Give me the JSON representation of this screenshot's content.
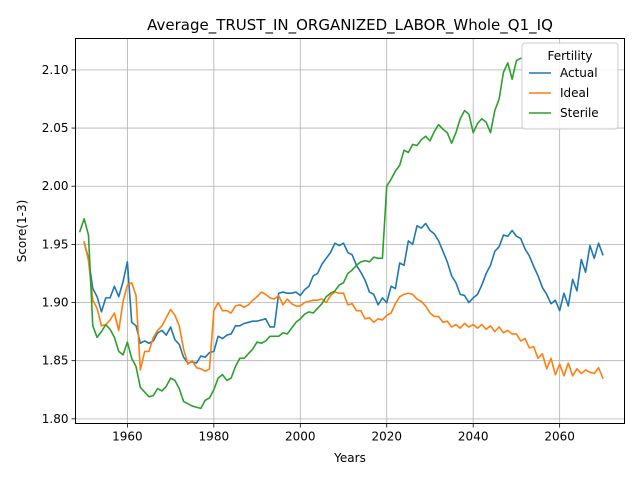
{
  "chart_data": {
    "type": "line",
    "title": "Average_TRUST_IN_ORGANIZED_LABOR_Whole_Q1_IQ",
    "xlabel": "Years",
    "ylabel": "Score(1-3)",
    "xlim": [
      1948,
      2075
    ],
    "ylim": [
      1.796,
      2.127
    ],
    "xticks": [
      1960,
      1980,
      2000,
      2020,
      2040,
      2060
    ],
    "yticks": [
      1.8,
      1.85,
      1.9,
      1.95,
      2.0,
      2.05,
      2.1
    ],
    "xtick_labels": [
      "1960",
      "1980",
      "2000",
      "2020",
      "2040",
      "2060"
    ],
    "ytick_labels": [
      "1.80",
      "1.85",
      "1.90",
      "1.95",
      "2.00",
      "2.05",
      "2.10"
    ],
    "grid": true,
    "legend": {
      "title": "Fertility",
      "position": "top-right"
    },
    "series": [
      {
        "name": "Actual",
        "color": "#1f77b4",
        "x": [
          1950,
          1951,
          1952,
          1953,
          1954,
          1955,
          1956,
          1957,
          1958,
          1959,
          1960,
          1961,
          1962,
          1963,
          1964,
          1965,
          1966,
          1967,
          1968,
          1969,
          1970,
          1971,
          1972,
          1973,
          1974,
          1975,
          1976,
          1977,
          1978,
          1979,
          1980,
          1981,
          1982,
          1983,
          1984,
          1985,
          1986,
          1987,
          1988,
          1989,
          1990,
          1991,
          1992,
          1993,
          1994,
          1995,
          1996,
          1997,
          1998,
          1999,
          2000,
          2001,
          2002,
          2003,
          2004,
          2005,
          2006,
          2007,
          2008,
          2009,
          2010,
          2011,
          2012,
          2013,
          2014,
          2015,
          2016,
          2017,
          2018,
          2019,
          2020,
          2021,
          2022,
          2023,
          2024,
          2025,
          2026,
          2027,
          2028,
          2029,
          2030,
          2031,
          2032,
          2033,
          2034,
          2035,
          2036,
          2037,
          2038,
          2039,
          2040,
          2041,
          2042,
          2043,
          2044,
          2045,
          2046,
          2047,
          2048,
          2049,
          2050,
          2051,
          2052,
          2053,
          2054,
          2055,
          2056,
          2057,
          2058,
          2059,
          2060,
          2061,
          2062,
          2063,
          2064,
          2065,
          2066,
          2067,
          2068,
          2069,
          2070
        ],
        "values": [
          1.952,
          1.938,
          1.912,
          1.905,
          1.892,
          1.904,
          1.904,
          1.914,
          1.905,
          1.918,
          1.935,
          1.883,
          1.88,
          1.865,
          1.867,
          1.865,
          1.867,
          1.874,
          1.876,
          1.872,
          1.879,
          1.868,
          1.864,
          1.853,
          1.848,
          1.849,
          1.848,
          1.854,
          1.853,
          1.857,
          1.858,
          1.871,
          1.869,
          1.872,
          1.873,
          1.88,
          1.88,
          1.882,
          1.883,
          1.884,
          1.884,
          1.885,
          1.886,
          1.879,
          1.879,
          1.908,
          1.909,
          1.908,
          1.908,
          1.909,
          1.906,
          1.911,
          1.914,
          1.923,
          1.925,
          1.933,
          1.938,
          1.943,
          1.951,
          1.949,
          1.951,
          1.943,
          1.941,
          1.932,
          1.926,
          1.919,
          1.909,
          1.907,
          1.898,
          1.904,
          1.9,
          1.914,
          1.912,
          1.934,
          1.932,
          1.953,
          1.95,
          1.966,
          1.964,
          1.968,
          1.962,
          1.959,
          1.953,
          1.944,
          1.935,
          1.923,
          1.917,
          1.907,
          1.906,
          1.9,
          1.904,
          1.907,
          1.915,
          1.925,
          1.932,
          1.944,
          1.948,
          1.958,
          1.957,
          1.962,
          1.957,
          1.955,
          1.946,
          1.94,
          1.931,
          1.923,
          1.913,
          1.907,
          1.899,
          1.902,
          1.893,
          1.908,
          1.897,
          1.92,
          1.91,
          1.937,
          1.926,
          1.949,
          1.938,
          1.951,
          1.941
        ]
      },
      {
        "name": "Ideal",
        "color": "#ff7f0e",
        "x": [
          1950,
          1951,
          1952,
          1953,
          1954,
          1955,
          1956,
          1957,
          1958,
          1959,
          1960,
          1961,
          1962,
          1963,
          1964,
          1965,
          1966,
          1967,
          1968,
          1969,
          1970,
          1971,
          1972,
          1973,
          1974,
          1975,
          1976,
          1977,
          1978,
          1979,
          1980,
          1981,
          1982,
          1983,
          1984,
          1985,
          1986,
          1987,
          1988,
          1989,
          1990,
          1991,
          1992,
          1993,
          1994,
          1995,
          1996,
          1997,
          1998,
          1999,
          2000,
          2001,
          2002,
          2003,
          2004,
          2005,
          2006,
          2007,
          2008,
          2009,
          2010,
          2011,
          2012,
          2013,
          2014,
          2015,
          2016,
          2017,
          2018,
          2019,
          2020,
          2021,
          2022,
          2023,
          2024,
          2025,
          2026,
          2027,
          2028,
          2029,
          2030,
          2031,
          2032,
          2033,
          2034,
          2035,
          2036,
          2037,
          2038,
          2039,
          2040,
          2041,
          2042,
          2043,
          2044,
          2045,
          2046,
          2047,
          2048,
          2049,
          2050,
          2051,
          2052,
          2053,
          2054,
          2055,
          2056,
          2057,
          2058,
          2059,
          2060,
          2061,
          2062,
          2063,
          2064,
          2065,
          2066,
          2067,
          2068,
          2069,
          2070
        ],
        "values": [
          1.952,
          1.936,
          1.902,
          1.895,
          1.88,
          1.881,
          1.885,
          1.891,
          1.876,
          1.901,
          1.915,
          1.917,
          1.906,
          1.842,
          1.858,
          1.858,
          1.87,
          1.876,
          1.88,
          1.887,
          1.894,
          1.889,
          1.88,
          1.86,
          1.847,
          1.85,
          1.844,
          1.843,
          1.841,
          1.843,
          1.893,
          1.9,
          1.893,
          1.893,
          1.891,
          1.897,
          1.898,
          1.896,
          1.898,
          1.902,
          1.905,
          1.909,
          1.907,
          1.904,
          1.903,
          1.906,
          1.898,
          1.903,
          1.899,
          1.897,
          1.897,
          1.9,
          1.901,
          1.902,
          1.902,
          1.903,
          1.9,
          1.906,
          1.909,
          1.908,
          1.908,
          1.898,
          1.899,
          1.893,
          1.893,
          1.886,
          1.887,
          1.883,
          1.886,
          1.885,
          1.889,
          1.891,
          1.899,
          1.905,
          1.907,
          1.908,
          1.907,
          1.903,
          1.901,
          1.897,
          1.891,
          1.888,
          1.888,
          1.883,
          1.884,
          1.879,
          1.881,
          1.878,
          1.882,
          1.879,
          1.881,
          1.878,
          1.881,
          1.877,
          1.88,
          1.875,
          1.879,
          1.874,
          1.876,
          1.873,
          1.873,
          1.867,
          1.869,
          1.861,
          1.862,
          1.852,
          1.856,
          1.843,
          1.852,
          1.838,
          1.847,
          1.837,
          1.848,
          1.837,
          1.843,
          1.839,
          1.842,
          1.84,
          1.839,
          1.844,
          1.835
        ]
      },
      {
        "name": "Sterile",
        "color": "#2ca02c",
        "x": [
          1949,
          1950,
          1951,
          1952,
          1953,
          1954,
          1955,
          1956,
          1957,
          1958,
          1959,
          1960,
          1961,
          1962,
          1963,
          1964,
          1965,
          1966,
          1967,
          1968,
          1969,
          1970,
          1971,
          1972,
          1973,
          1974,
          1975,
          1976,
          1977,
          1978,
          1979,
          1980,
          1981,
          1982,
          1983,
          1984,
          1985,
          1986,
          1987,
          1988,
          1989,
          1990,
          1991,
          1992,
          1993,
          1994,
          1995,
          1996,
          1997,
          1998,
          1999,
          2000,
          2001,
          2002,
          2003,
          2004,
          2005,
          2006,
          2007,
          2008,
          2009,
          2010,
          2011,
          2012,
          2013,
          2014,
          2015,
          2016,
          2017,
          2018,
          2019,
          2020,
          2021,
          2022,
          2023,
          2024,
          2025,
          2026,
          2027,
          2028,
          2029,
          2030,
          2031,
          2032,
          2033,
          2034,
          2035,
          2036,
          2037,
          2038,
          2039,
          2040,
          2041,
          2042,
          2043,
          2044,
          2045,
          2046,
          2047,
          2048,
          2049,
          2050,
          2051
        ],
        "values": [
          1.961,
          1.972,
          1.958,
          1.88,
          1.87,
          1.875,
          1.881,
          1.877,
          1.87,
          1.858,
          1.855,
          1.866,
          1.852,
          1.845,
          1.827,
          1.823,
          1.819,
          1.82,
          1.826,
          1.824,
          1.828,
          1.835,
          1.833,
          1.826,
          1.815,
          1.813,
          1.811,
          1.81,
          1.809,
          1.816,
          1.818,
          1.825,
          1.835,
          1.838,
          1.833,
          1.835,
          1.845,
          1.852,
          1.852,
          1.856,
          1.86,
          1.866,
          1.865,
          1.867,
          1.871,
          1.871,
          1.871,
          1.874,
          1.873,
          1.878,
          1.883,
          1.886,
          1.89,
          1.892,
          1.891,
          1.895,
          1.899,
          1.905,
          1.908,
          1.91,
          1.915,
          1.917,
          1.925,
          1.928,
          1.932,
          1.935,
          1.936,
          1.935,
          1.939,
          1.938,
          1.938,
          2.0,
          2.006,
          2.013,
          2.018,
          2.031,
          2.029,
          2.036,
          2.035,
          2.04,
          2.043,
          2.039,
          2.047,
          2.053,
          2.049,
          2.046,
          2.037,
          2.046,
          2.058,
          2.065,
          2.062,
          2.046,
          2.054,
          2.058,
          2.055,
          2.046,
          2.065,
          2.075,
          2.098,
          2.106,
          2.092,
          2.108,
          2.11
        ]
      }
    ]
  }
}
